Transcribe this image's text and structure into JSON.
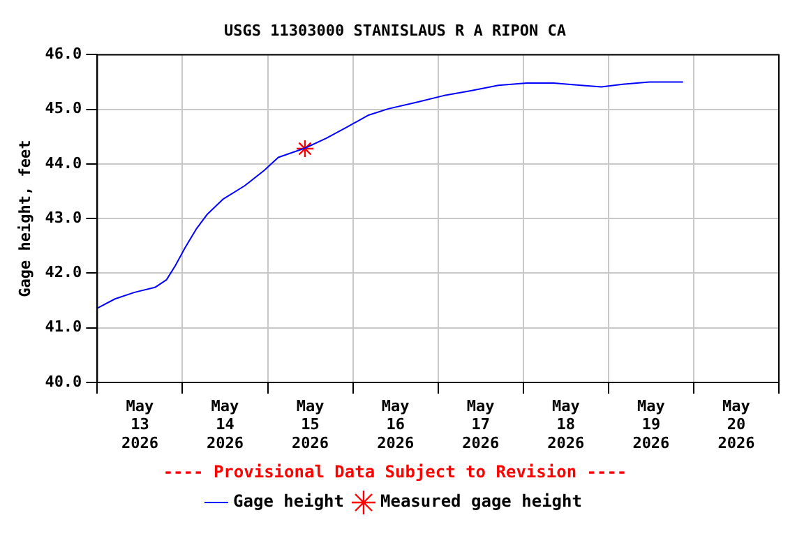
{
  "chart_data": {
    "type": "line",
    "title": "USGS 11303000 STANISLAUS R A RIPON CA",
    "ylabel": "Gage height, feet",
    "xlim": [
      "2026-05-13T00:00",
      "2026-05-21T00:00"
    ],
    "xticks": [
      {
        "value": "2026-05-13T00:00",
        "label": null
      },
      {
        "value": "2026-05-13T12:00",
        "label": "May 13 2026"
      },
      {
        "value": "2026-05-14T00:00",
        "label": null
      },
      {
        "value": "2026-05-14T12:00",
        "label": "May 14 2026"
      },
      {
        "value": "2026-05-15T00:00",
        "label": null
      },
      {
        "value": "2026-05-15T12:00",
        "label": "May 15 2026"
      },
      {
        "value": "2026-05-16T00:00",
        "label": null
      },
      {
        "value": "2026-05-16T12:00",
        "label": "May 16 2026"
      },
      {
        "value": "2026-05-17T00:00",
        "label": null
      },
      {
        "value": "2026-05-17T12:00",
        "label": "May 17 2026"
      },
      {
        "value": "2026-05-18T00:00",
        "label": null
      },
      {
        "value": "2026-05-18T12:00",
        "label": "May 18 2026"
      },
      {
        "value": "2026-05-19T00:00",
        "label": null
      },
      {
        "value": "2026-05-19T12:00",
        "label": "May 19 2026"
      },
      {
        "value": "2026-05-20T00:00",
        "label": null
      },
      {
        "value": "2026-05-20T12:00",
        "label": "May 20 2026"
      },
      {
        "value": "2026-05-21T00:00",
        "label": null
      }
    ],
    "ylim": [
      40,
      46
    ],
    "yticks": [
      {
        "value": 40,
        "label": "40.0"
      },
      {
        "value": 41,
        "label": "41.0"
      },
      {
        "value": 42,
        "label": "42.0"
      },
      {
        "value": 43,
        "label": "43.0"
      },
      {
        "value": 44,
        "label": "44.0"
      },
      {
        "value": 45,
        "label": "45.0"
      },
      {
        "value": 46,
        "label": "46.0"
      }
    ],
    "grid": true,
    "legend": "bottom",
    "annotations": [
      "---- Provisional Data Subject to Revision ----"
    ],
    "series": [
      {
        "name": "Gage height",
        "type": "line",
        "color": "#0000ff",
        "marker": "none",
        "line_style": "solid",
        "x": [
          "2026-05-13T00:00",
          "2026-05-13T05:00",
          "2026-05-13T10:30",
          "2026-05-13T16:15",
          "2026-05-13T19:30",
          "2026-05-13T22:00",
          "2026-05-14T00:45",
          "2026-05-14T04:00",
          "2026-05-14T07:00",
          "2026-05-14T11:30",
          "2026-05-14T17:30",
          "2026-05-14T23:00",
          "2026-05-15T03:00",
          "2026-05-15T10:30",
          "2026-05-15T16:30",
          "2026-05-15T22:30",
          "2026-05-16T04:15",
          "2026-05-16T10:00",
          "2026-05-16T18:00",
          "2026-05-17T01:30",
          "2026-05-17T09:15",
          "2026-05-17T17:00",
          "2026-05-18T01:00",
          "2026-05-18T08:30",
          "2026-05-18T16:15",
          "2026-05-18T22:00",
          "2026-05-19T04:00",
          "2026-05-19T11:30",
          "2026-05-19T21:00"
        ],
        "values": [
          41.36,
          41.53,
          41.65,
          41.74,
          41.88,
          42.14,
          42.47,
          42.82,
          43.08,
          43.36,
          43.6,
          43.88,
          44.12,
          44.29,
          44.47,
          44.68,
          44.89,
          45.01,
          45.13,
          45.25,
          45.34,
          45.44,
          45.48,
          45.48,
          45.44,
          45.41,
          45.46,
          45.5,
          45.5
        ]
      },
      {
        "name": "Measured gage height",
        "type": "scatter",
        "color": "#ff0000",
        "marker": "cross",
        "x": [
          "2026-05-15T10:30"
        ],
        "values": [
          44.28
        ]
      }
    ]
  }
}
